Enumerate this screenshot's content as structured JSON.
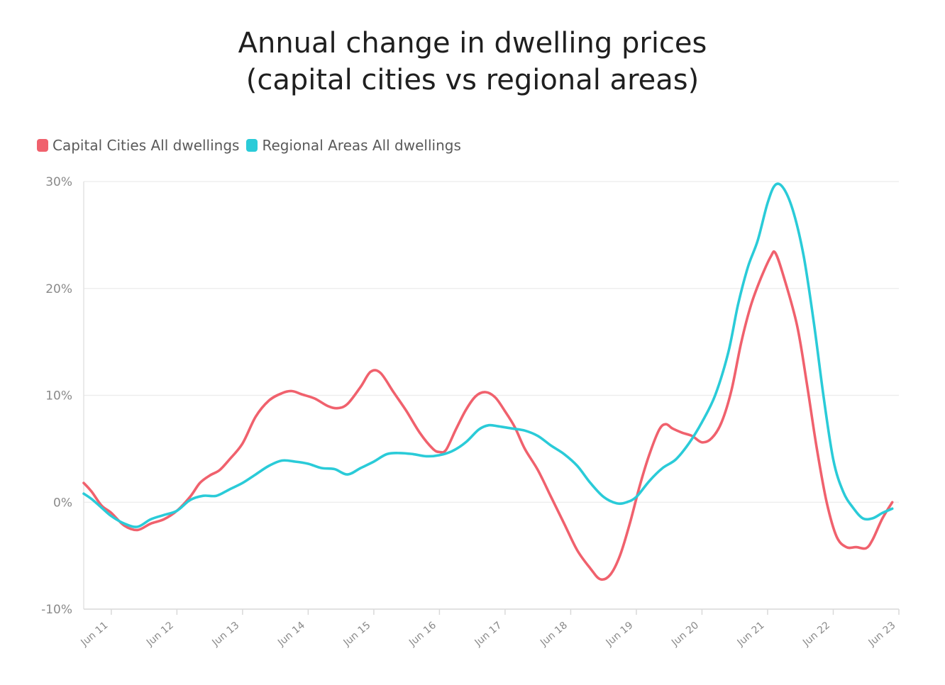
{
  "page": {
    "title_line_1": "Annual change in dwelling prices",
    "title_line_2": "(capital cities vs regional areas)"
  },
  "chart_data": {
    "type": "line",
    "title": "Annual change in dwelling prices (capital cities vs regional areas)",
    "xlabel": "",
    "ylabel": "",
    "ylim": [
      -10,
      30
    ],
    "xlim": [
      2010.58,
      2023.0
    ],
    "y_ticks": [
      {
        "value": 30,
        "label": "30%"
      },
      {
        "value": 20,
        "label": "20%"
      },
      {
        "value": 10,
        "label": "10%"
      },
      {
        "value": 0,
        "label": "0%"
      },
      {
        "value": -10,
        "label": "-10%"
      }
    ],
    "x_ticks": [
      {
        "value": 2011,
        "label": "Jun 11"
      },
      {
        "value": 2012,
        "label": "Jun 12"
      },
      {
        "value": 2013,
        "label": "Jun 13"
      },
      {
        "value": 2014,
        "label": "Jun 14"
      },
      {
        "value": 2015,
        "label": "Jun 15"
      },
      {
        "value": 2016,
        "label": "Jun 16"
      },
      {
        "value": 2017,
        "label": "Jun 17"
      },
      {
        "value": 2018,
        "label": "Jun 18"
      },
      {
        "value": 2019,
        "label": "Jun 19"
      },
      {
        "value": 2020,
        "label": "Jun 20"
      },
      {
        "value": 2021,
        "label": "Jun 21"
      },
      {
        "value": 2022,
        "label": "Jun 22"
      },
      {
        "value": 2023,
        "label": "Jun 23"
      }
    ],
    "grid": true,
    "legend_position": "top-left",
    "series": [
      {
        "name": "Capital Cities All dwellings",
        "color": "#f0616d",
        "points": [
          [
            2010.58,
            1.8
          ],
          [
            2010.7,
            1.0
          ],
          [
            2010.85,
            -0.3
          ],
          [
            2011.0,
            -1.0
          ],
          [
            2011.2,
            -2.2
          ],
          [
            2011.4,
            -2.6
          ],
          [
            2011.6,
            -2.0
          ],
          [
            2011.8,
            -1.6
          ],
          [
            2012.0,
            -0.8
          ],
          [
            2012.2,
            0.5
          ],
          [
            2012.35,
            1.8
          ],
          [
            2012.5,
            2.5
          ],
          [
            2012.65,
            3.0
          ],
          [
            2012.8,
            4.0
          ],
          [
            2013.0,
            5.5
          ],
          [
            2013.2,
            8.0
          ],
          [
            2013.4,
            9.5
          ],
          [
            2013.6,
            10.2
          ],
          [
            2013.75,
            10.4
          ],
          [
            2013.9,
            10.1
          ],
          [
            2014.1,
            9.7
          ],
          [
            2014.3,
            9.0
          ],
          [
            2014.45,
            8.8
          ],
          [
            2014.6,
            9.2
          ],
          [
            2014.8,
            10.8
          ],
          [
            2014.95,
            12.2
          ],
          [
            2015.1,
            12.1
          ],
          [
            2015.3,
            10.3
          ],
          [
            2015.5,
            8.5
          ],
          [
            2015.7,
            6.5
          ],
          [
            2015.9,
            5.0
          ],
          [
            2016.0,
            4.7
          ],
          [
            2016.1,
            4.9
          ],
          [
            2016.25,
            6.8
          ],
          [
            2016.4,
            8.6
          ],
          [
            2016.55,
            9.9
          ],
          [
            2016.7,
            10.3
          ],
          [
            2016.85,
            9.8
          ],
          [
            2017.0,
            8.5
          ],
          [
            2017.15,
            7.0
          ],
          [
            2017.3,
            5.0
          ],
          [
            2017.5,
            3.0
          ],
          [
            2017.7,
            0.5
          ],
          [
            2017.9,
            -2.0
          ],
          [
            2018.1,
            -4.5
          ],
          [
            2018.3,
            -6.2
          ],
          [
            2018.45,
            -7.2
          ],
          [
            2018.6,
            -6.8
          ],
          [
            2018.75,
            -5.0
          ],
          [
            2018.9,
            -2.0
          ],
          [
            2019.05,
            1.5
          ],
          [
            2019.2,
            4.5
          ],
          [
            2019.35,
            6.8
          ],
          [
            2019.45,
            7.3
          ],
          [
            2019.55,
            6.9
          ],
          [
            2019.7,
            6.5
          ],
          [
            2019.85,
            6.2
          ],
          [
            2020.0,
            5.6
          ],
          [
            2020.15,
            6.0
          ],
          [
            2020.3,
            7.5
          ],
          [
            2020.45,
            10.5
          ],
          [
            2020.6,
            15.0
          ],
          [
            2020.75,
            18.5
          ],
          [
            2020.9,
            21.0
          ],
          [
            2021.05,
            23.0
          ],
          [
            2021.12,
            23.3
          ],
          [
            2021.25,
            21.0
          ],
          [
            2021.45,
            16.5
          ],
          [
            2021.6,
            11.0
          ],
          [
            2021.75,
            5.0
          ],
          [
            2021.9,
            0.0
          ],
          [
            2022.05,
            -3.2
          ],
          [
            2022.2,
            -4.2
          ],
          [
            2022.35,
            -4.2
          ],
          [
            2022.5,
            -4.3
          ],
          [
            2022.6,
            -3.5
          ],
          [
            2022.75,
            -1.5
          ],
          [
            2022.9,
            0.0
          ]
        ]
      },
      {
        "name": "Regional Areas All dwellings",
        "color": "#2acbd8",
        "points": [
          [
            2010.58,
            0.8
          ],
          [
            2010.7,
            0.3
          ],
          [
            2010.85,
            -0.5
          ],
          [
            2011.0,
            -1.3
          ],
          [
            2011.2,
            -2.0
          ],
          [
            2011.4,
            -2.3
          ],
          [
            2011.6,
            -1.6
          ],
          [
            2011.8,
            -1.2
          ],
          [
            2012.0,
            -0.8
          ],
          [
            2012.2,
            0.2
          ],
          [
            2012.4,
            0.6
          ],
          [
            2012.6,
            0.6
          ],
          [
            2012.8,
            1.2
          ],
          [
            2013.0,
            1.8
          ],
          [
            2013.2,
            2.6
          ],
          [
            2013.4,
            3.4
          ],
          [
            2013.6,
            3.9
          ],
          [
            2013.8,
            3.8
          ],
          [
            2014.0,
            3.6
          ],
          [
            2014.2,
            3.2
          ],
          [
            2014.4,
            3.1
          ],
          [
            2014.6,
            2.6
          ],
          [
            2014.8,
            3.2
          ],
          [
            2015.0,
            3.8
          ],
          [
            2015.2,
            4.5
          ],
          [
            2015.4,
            4.6
          ],
          [
            2015.6,
            4.5
          ],
          [
            2015.8,
            4.3
          ],
          [
            2016.0,
            4.4
          ],
          [
            2016.2,
            4.8
          ],
          [
            2016.4,
            5.6
          ],
          [
            2016.6,
            6.8
          ],
          [
            2016.75,
            7.2
          ],
          [
            2016.9,
            7.1
          ],
          [
            2017.1,
            6.9
          ],
          [
            2017.3,
            6.7
          ],
          [
            2017.5,
            6.2
          ],
          [
            2017.7,
            5.3
          ],
          [
            2017.9,
            4.5
          ],
          [
            2018.1,
            3.4
          ],
          [
            2018.3,
            1.8
          ],
          [
            2018.5,
            0.5
          ],
          [
            2018.7,
            -0.1
          ],
          [
            2018.85,
            0.0
          ],
          [
            2019.0,
            0.5
          ],
          [
            2019.2,
            2.0
          ],
          [
            2019.4,
            3.2
          ],
          [
            2019.6,
            4.0
          ],
          [
            2019.8,
            5.5
          ],
          [
            2020.0,
            7.5
          ],
          [
            2020.2,
            10.0
          ],
          [
            2020.4,
            14.0
          ],
          [
            2020.55,
            18.5
          ],
          [
            2020.7,
            22.0
          ],
          [
            2020.85,
            24.5
          ],
          [
            2021.0,
            28.0
          ],
          [
            2021.12,
            29.7
          ],
          [
            2021.25,
            29.3
          ],
          [
            2021.4,
            27.0
          ],
          [
            2021.55,
            23.0
          ],
          [
            2021.7,
            17.0
          ],
          [
            2021.85,
            10.0
          ],
          [
            2022.0,
            4.0
          ],
          [
            2022.15,
            1.0
          ],
          [
            2022.3,
            -0.5
          ],
          [
            2022.45,
            -1.5
          ],
          [
            2022.6,
            -1.5
          ],
          [
            2022.75,
            -1.0
          ],
          [
            2022.9,
            -0.6
          ]
        ]
      }
    ]
  }
}
